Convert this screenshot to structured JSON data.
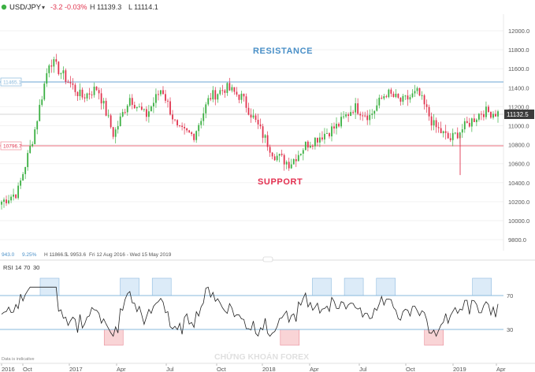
{
  "header": {
    "symbol": "USD/JPY",
    "change": "-3.2",
    "change_pct": "-0.03%",
    "high": "H 11139.3",
    "low": "L 11114.1"
  },
  "price_tag": "11132.5",
  "levels": {
    "resistance_label": "11465.1",
    "support_label": "10796.7"
  },
  "annotations": {
    "resistance": "RESISTANCE",
    "support": "SUPPORT"
  },
  "stats": {
    "value": "943.0",
    "pct": "9.25%",
    "high": "H 11866.5",
    "low": "L 9953.6",
    "range": "Fri 12 Aug 2016 - Wed 15 May 2019"
  },
  "rsi": {
    "label": "RSI",
    "period": "14",
    "upper": "70",
    "lower": "30"
  },
  "footer_note": "Data is indicative",
  "watermark": "CHỨNG KHOÁN FOREX",
  "colors": {
    "up": "#3cb043",
    "down": "#e0344e",
    "resistance": "#89b8dc",
    "support": "#ee8a96",
    "annotation_resistance": "#4a90c8",
    "annotation_support": "#e33050",
    "overbought_box": "#dcebf8",
    "oversold_box": "#f9d4d6"
  },
  "chart_data": [
    {
      "type": "candlestick",
      "title": "USD/JPY",
      "yticks": [
        9800,
        10000,
        10200,
        10400,
        10600,
        10800,
        11000,
        11200,
        11400,
        11600,
        11800,
        12000
      ],
      "ylim": [
        9680,
        12080
      ],
      "xticks": [
        "2016",
        "Oct",
        "2017",
        "Apr",
        "Jul",
        "Oct",
        "2018",
        "Apr",
        "Jul",
        "Oct",
        "2019",
        "Apr"
      ],
      "resistance": 11465.1,
      "support": 10796.7,
      "last": 11132.5,
      "series": [
        {
          "date": "2016-09",
          "close": 10200
        },
        {
          "date": "2016-10",
          "close": 10300
        },
        {
          "date": "2016-11",
          "close": 10900
        },
        {
          "date": "2016-12",
          "close": 11700
        },
        {
          "date": "2017-01",
          "close": 11500
        },
        {
          "date": "2017-02",
          "close": 11300
        },
        {
          "date": "2017-03",
          "close": 11400
        },
        {
          "date": "2017-04",
          "close": 10900
        },
        {
          "date": "2017-05",
          "close": 11300
        },
        {
          "date": "2017-06",
          "close": 11100
        },
        {
          "date": "2017-07",
          "close": 11400
        },
        {
          "date": "2017-08",
          "close": 10950
        },
        {
          "date": "2017-09",
          "close": 10900
        },
        {
          "date": "2017-10",
          "close": 11300
        },
        {
          "date": "2017-11",
          "close": 11400
        },
        {
          "date": "2017-12",
          "close": 11300
        },
        {
          "date": "2018-01",
          "close": 11000
        },
        {
          "date": "2018-02",
          "close": 10700
        },
        {
          "date": "2018-03",
          "close": 10600
        },
        {
          "date": "2018-04",
          "close": 10800
        },
        {
          "date": "2018-05",
          "close": 10900
        },
        {
          "date": "2018-06",
          "close": 11000
        },
        {
          "date": "2018-07",
          "close": 11200
        },
        {
          "date": "2018-08",
          "close": 11100
        },
        {
          "date": "2018-09",
          "close": 11350
        },
        {
          "date": "2018-10",
          "close": 11250
        },
        {
          "date": "2018-11",
          "close": 11350
        },
        {
          "date": "2018-12",
          "close": 11000
        },
        {
          "date": "2019-01",
          "close": 10850
        },
        {
          "date": "2019-02",
          "close": 11000
        },
        {
          "date": "2019-03",
          "close": 11150
        },
        {
          "date": "2019-04",
          "close": 11132.5
        }
      ]
    },
    {
      "type": "line",
      "title": "RSI 14",
      "yticks": [
        30,
        70
      ],
      "overbought_periods": [
        "2016-12",
        "2017-05",
        "2017-07",
        "2018-05",
        "2018-07",
        "2018-09",
        "2019-03"
      ],
      "oversold_periods": [
        "2017-04",
        "2018-03",
        "2018-12"
      ]
    }
  ]
}
